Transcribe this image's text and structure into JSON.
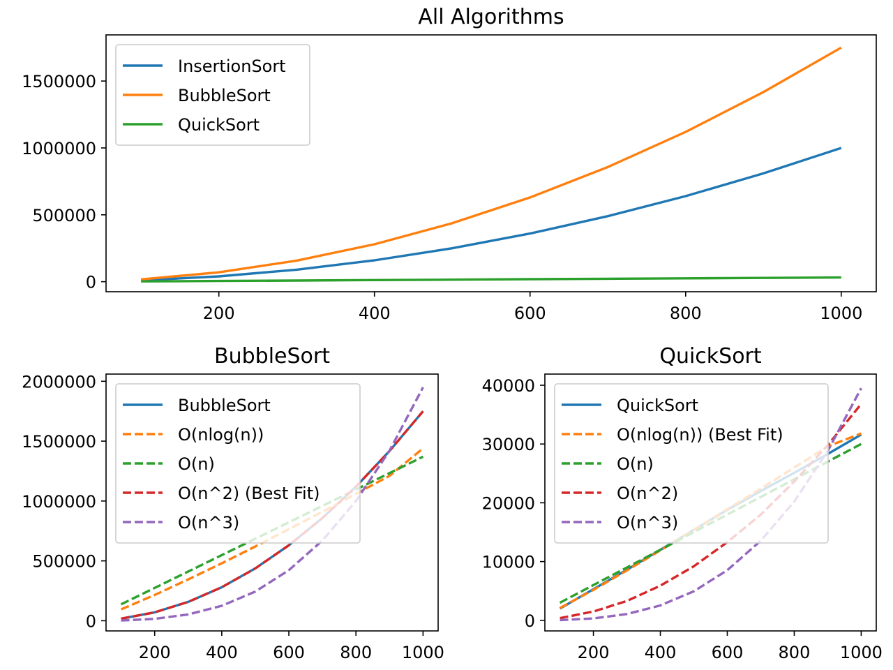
{
  "chart_data": [
    {
      "type": "line",
      "title": "All Algorithms",
      "xlabel": "",
      "ylabel": "",
      "xlim": [
        55,
        1045
      ],
      "ylim": [
        -75000,
        1845000
      ],
      "xticks": [
        200,
        400,
        600,
        800,
        1000
      ],
      "yticks": [
        0,
        500000,
        1000000,
        1500000
      ],
      "x": [
        100,
        200,
        300,
        400,
        500,
        600,
        700,
        800,
        900,
        1000
      ],
      "legend_position": "upper-left",
      "series": [
        {
          "name": "InsertionSort",
          "color": "#1f77b4",
          "style": "solid",
          "values": [
            10000,
            40000,
            90000,
            160000,
            250000,
            360000,
            490000,
            640000,
            810000,
            1000000
          ]
        },
        {
          "name": "BubbleSort",
          "color": "#ff7f0e",
          "style": "solid",
          "values": [
            17500,
            70000,
            157500,
            280000,
            437500,
            630000,
            857500,
            1120000,
            1417500,
            1750000
          ]
        },
        {
          "name": "QuickSort",
          "color": "#2ca02c",
          "style": "solid",
          "values": [
            2000,
            5300,
            8600,
            12000,
            15400,
            18800,
            22000,
            25100,
            28300,
            31600
          ]
        }
      ]
    },
    {
      "type": "line",
      "title": "BubbleSort",
      "xlabel": "",
      "ylabel": "",
      "xlim": [
        55,
        1045
      ],
      "ylim": [
        -85000,
        2060000
      ],
      "xticks": [
        200,
        400,
        600,
        800,
        1000
      ],
      "yticks": [
        0,
        500000,
        1000000,
        1500000,
        2000000
      ],
      "x": [
        100,
        200,
        300,
        400,
        500,
        600,
        700,
        800,
        900,
        1000
      ],
      "legend_position": "upper-left",
      "series": [
        {
          "name": "BubbleSort",
          "color": "#1f77b4",
          "style": "solid",
          "values": [
            17500,
            70000,
            157500,
            280000,
            437500,
            630000,
            857500,
            1120000,
            1417500,
            1750000
          ]
        },
        {
          "name": "O(nlog(n))",
          "color": "#ff7f0e",
          "style": "dashed",
          "values": [
            95000,
            215000,
            345000,
            480000,
            620000,
            765000,
            910000,
            1060000,
            1210000,
            1440000
          ]
        },
        {
          "name": "O(n)",
          "color": "#2ca02c",
          "style": "dashed",
          "values": [
            137000,
            274000,
            411000,
            548000,
            685000,
            822000,
            959000,
            1096000,
            1233000,
            1370000
          ]
        },
        {
          "name": "O(n^2) (Best Fit)",
          "color": "#d62728",
          "style": "dashed",
          "values": [
            17500,
            70000,
            157500,
            280000,
            437500,
            630000,
            857500,
            1120000,
            1417500,
            1750000
          ]
        },
        {
          "name": "O(n^3)",
          "color": "#9467bd",
          "style": "dashed",
          "values": [
            2000,
            15600,
            52700,
            125000,
            244000,
            422000,
            670000,
            1000000,
            1420000,
            1950000
          ]
        }
      ]
    },
    {
      "type": "line",
      "title": "QuickSort",
      "xlabel": "",
      "ylabel": "",
      "xlim": [
        55,
        1045
      ],
      "ylim": [
        -1800,
        41900
      ],
      "xticks": [
        200,
        400,
        600,
        800,
        1000
      ],
      "yticks": [
        0,
        10000,
        20000,
        30000,
        40000
      ],
      "x": [
        100,
        200,
        300,
        400,
        500,
        600,
        700,
        800,
        900,
        1000
      ],
      "legend_position": "upper-left",
      "series": [
        {
          "name": "QuickSort",
          "color": "#1f77b4",
          "style": "solid",
          "values": [
            2000,
            5300,
            8600,
            12000,
            15400,
            18800,
            22000,
            25100,
            28300,
            31600
          ]
        },
        {
          "name": "O(nlog(n)) (Best Fit)",
          "color": "#ff7f0e",
          "style": "dashed",
          "values": [
            2100,
            5200,
            8500,
            11900,
            15400,
            18900,
            22400,
            26000,
            29600,
            31800
          ]
        },
        {
          "name": "O(n)",
          "color": "#2ca02c",
          "style": "dashed",
          "values": [
            3000,
            6000,
            9000,
            12000,
            15000,
            18000,
            21000,
            24000,
            27000,
            30000
          ]
        },
        {
          "name": "O(n^2)",
          "color": "#d62728",
          "style": "dashed",
          "values": [
            370,
            1500,
            3300,
            5900,
            9200,
            13300,
            18000,
            23600,
            29800,
            36800
          ]
        },
        {
          "name": "O(n^3)",
          "color": "#9467bd",
          "style": "dashed",
          "values": [
            40,
            320,
            1070,
            2530,
            4940,
            8530,
            13550,
            20200,
            28800,
            39500
          ]
        }
      ]
    }
  ]
}
